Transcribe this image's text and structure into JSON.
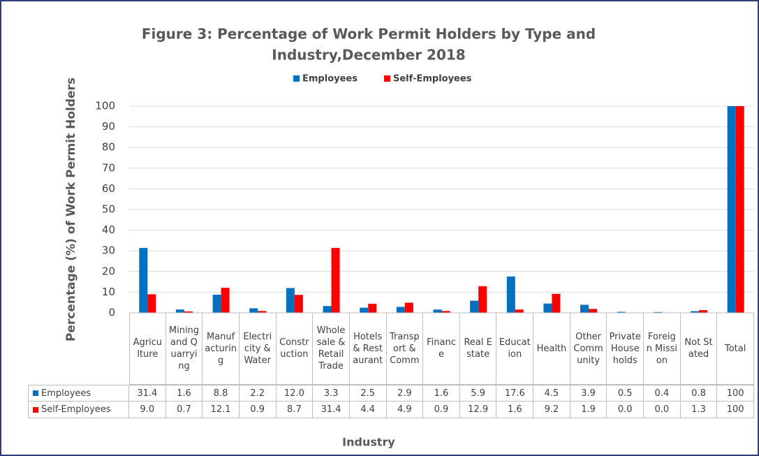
{
  "chart_data": {
    "type": "bar",
    "title": [
      "Figure 3: Percentage of Work Permit Holders by Type and",
      "Industry,December 2018"
    ],
    "y_label": "Percentage (%) of Work Permit Holders",
    "x_label": "Industry",
    "categories": [
      "Agriculture",
      "Mining and Quarrying",
      "Manufacturing",
      "Electricity & Water",
      "Construction",
      "Wholesale & Retail Trade",
      "Hotels & Restaurant",
      "Transport & Comm",
      "Finance",
      "Real Estate",
      "Education",
      "Health",
      "Other Community",
      "Private Households",
      "Foreign Mission",
      "Not Stated",
      "Total"
    ],
    "series": [
      {
        "name": "Employees",
        "color": "#0070c0",
        "values": [
          31.4,
          1.6,
          8.8,
          2.2,
          12.0,
          3.3,
          2.5,
          2.9,
          1.6,
          5.9,
          17.6,
          4.5,
          3.9,
          0.5,
          0.4,
          0.8,
          100
        ],
        "value_labels": [
          "31.4",
          "1.6",
          "8.8",
          "2.2",
          "12.0",
          "3.3",
          "2.5",
          "2.9",
          "1.6",
          "5.9",
          "17.6",
          "4.5",
          "3.9",
          "0.5",
          "0.4",
          "0.8",
          "100"
        ]
      },
      {
        "name": "Self-Employees",
        "color": "#ff0000",
        "values": [
          9.0,
          0.7,
          12.1,
          0.9,
          8.7,
          31.4,
          4.4,
          4.9,
          0.9,
          12.9,
          1.6,
          9.2,
          1.9,
          0.0,
          0.0,
          1.3,
          100
        ],
        "value_labels": [
          "9.0",
          "0.7",
          "12.1",
          "0.9",
          "8.7",
          "31.4",
          "4.4",
          "4.9",
          "0.9",
          "12.9",
          "1.6",
          "9.2",
          "1.9",
          "0.0",
          "0.0",
          "1.3",
          "100"
        ]
      }
    ],
    "ylim": [
      0,
      100
    ],
    "yticks": [
      0,
      10,
      20,
      30,
      40,
      50,
      60,
      70,
      80,
      90,
      100
    ],
    "grid": true,
    "legend": "top"
  }
}
